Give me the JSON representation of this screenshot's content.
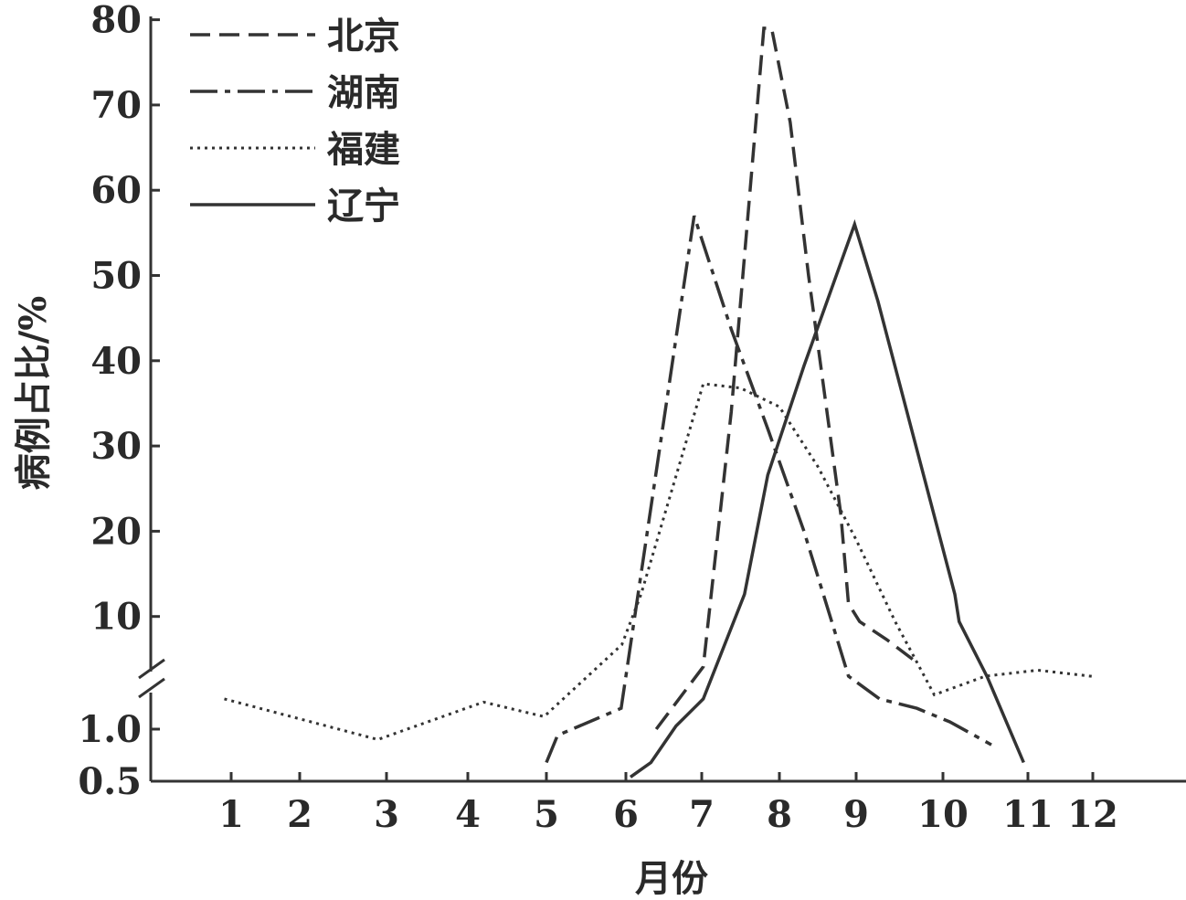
{
  "chart_data": {
    "type": "line",
    "title": "",
    "xlabel": "月份",
    "ylabel": "病例占比/%",
    "x_ticks": [
      "1",
      "2",
      "3",
      "4",
      "5",
      "6",
      "7",
      "8",
      "9",
      "10",
      "11",
      "12"
    ],
    "y_ticks_lower": [
      "0.5",
      "1.0"
    ],
    "y_ticks_upper": [
      "10",
      "20",
      "30",
      "40",
      "50",
      "60",
      "70",
      "80"
    ],
    "y_axis_broken": true,
    "ylim": [
      0.5,
      80
    ],
    "grid": false,
    "legend_position": "top-left",
    "line_color": "#333333",
    "series": [
      {
        "name": "北京",
        "style": "dashed",
        "points": [
          [
            6.4,
            1.0
          ],
          [
            7.02,
            4.1
          ],
          [
            7.38,
            34
          ],
          [
            7.8,
            79
          ],
          [
            7.9,
            79
          ],
          [
            8.14,
            68
          ],
          [
            8.38,
            50
          ],
          [
            8.8,
            22
          ],
          [
            8.9,
            11.5
          ],
          [
            9.04,
            9.4
          ],
          [
            9.35,
            7.3
          ],
          [
            9.7,
            4.6
          ]
        ]
      },
      {
        "name": "湖南",
        "style": "dash-dot",
        "points": [
          [
            5.0,
            0.68
          ],
          [
            5.14,
            0.94
          ],
          [
            5.94,
            1.2
          ],
          [
            6.9,
            57
          ],
          [
            7.38,
            43.7
          ],
          [
            7.85,
            32
          ],
          [
            8.32,
            20
          ],
          [
            8.9,
            3.0
          ],
          [
            9.27,
            1.29
          ],
          [
            9.7,
            1.2
          ],
          [
            10.08,
            1.07
          ],
          [
            10.57,
            0.85
          ]
        ]
      },
      {
        "name": "福建",
        "style": "dotted",
        "points": [
          [
            0.9,
            1.29
          ],
          [
            2.9,
            0.9
          ],
          [
            4.2,
            1.26
          ],
          [
            4.97,
            1.12
          ],
          [
            5.95,
            6.7
          ],
          [
            6.2,
            12.6
          ],
          [
            7.02,
            37.3
          ],
          [
            7.5,
            36.8
          ],
          [
            8.0,
            34.6
          ],
          [
            8.5,
            27.6
          ],
          [
            9.0,
            19
          ],
          [
            9.45,
            9.4
          ],
          [
            9.9,
            1.33
          ],
          [
            10.5,
            3.0
          ],
          [
            11.15,
            3.7
          ],
          [
            12.0,
            2.5
          ]
        ]
      },
      {
        "name": "辽宁",
        "style": "solid",
        "points": [
          [
            6.06,
            0.54
          ],
          [
            6.33,
            0.68
          ],
          [
            6.66,
            1.03
          ],
          [
            7.02,
            1.29
          ],
          [
            7.55,
            12.6
          ],
          [
            7.85,
            26.6
          ],
          [
            8.32,
            39.4
          ],
          [
            8.98,
            56
          ],
          [
            9.25,
            47
          ],
          [
            10.14,
            12.6
          ],
          [
            10.19,
            9.4
          ],
          [
            10.52,
            2.0
          ],
          [
            10.95,
            0.68
          ]
        ]
      }
    ]
  }
}
